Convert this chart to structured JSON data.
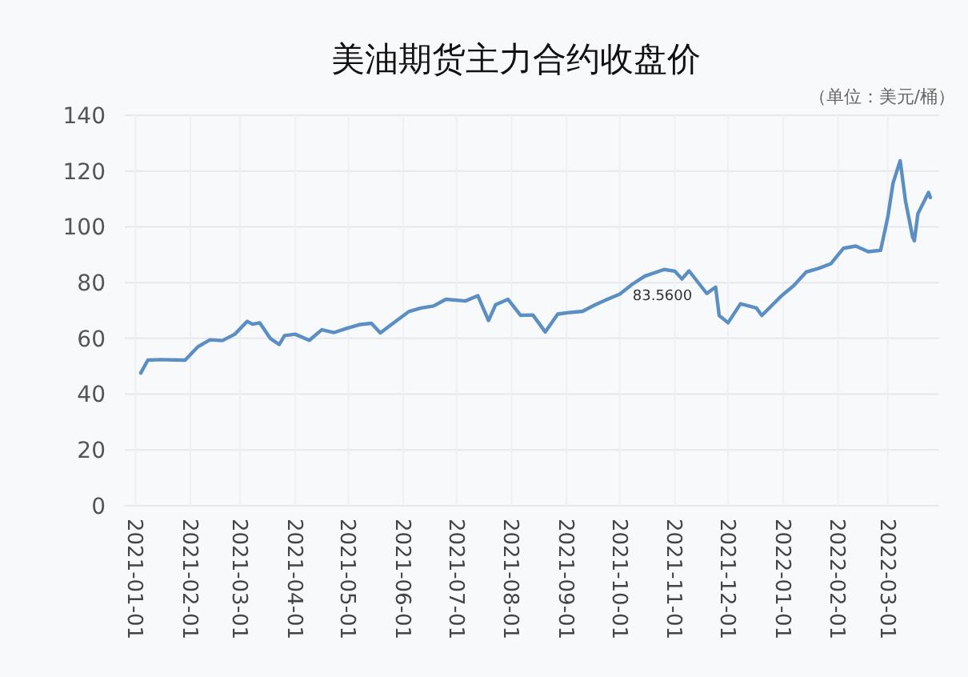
{
  "chart_data": {
    "type": "line",
    "title": "美油期货主力合约收盘价",
    "annotations": [
      "（单位：美元/桶）",
      {
        "text": "83.5600",
        "x": "2021-10-25",
        "y": 83.56
      }
    ],
    "x": [
      "2021-01-04",
      "2021-01-08",
      "2021-01-15",
      "2021-01-22",
      "2021-01-29",
      "2021-02-05",
      "2021-02-12",
      "2021-02-19",
      "2021-02-26",
      "2021-03-05",
      "2021-03-08",
      "2021-03-12",
      "2021-03-18",
      "2021-03-23",
      "2021-03-26",
      "2021-04-01",
      "2021-04-09",
      "2021-04-16",
      "2021-04-23",
      "2021-04-30",
      "2021-05-07",
      "2021-05-14",
      "2021-05-19",
      "2021-05-28",
      "2021-06-04",
      "2021-06-11",
      "2021-06-18",
      "2021-06-25",
      "2021-07-06",
      "2021-07-13",
      "2021-07-19",
      "2021-07-23",
      "2021-07-30",
      "2021-08-06",
      "2021-08-13",
      "2021-08-20",
      "2021-08-27",
      "2021-09-03",
      "2021-09-10",
      "2021-09-17",
      "2021-09-24",
      "2021-10-01",
      "2021-10-08",
      "2021-10-15",
      "2021-10-26",
      "2021-11-01",
      "2021-11-05",
      "2021-11-09",
      "2021-11-19",
      "2021-11-24",
      "2021-11-26",
      "2021-12-01",
      "2021-12-08",
      "2021-12-17",
      "2021-12-20",
      "2021-12-31",
      "2022-01-07",
      "2022-01-14",
      "2022-01-21",
      "2022-01-28",
      "2022-02-04",
      "2022-02-11",
      "2022-02-18",
      "2022-02-25",
      "2022-03-01",
      "2022-03-04",
      "2022-03-08",
      "2022-03-11",
      "2022-03-15",
      "2022-03-16",
      "2022-03-18",
      "2022-03-24",
      "2022-03-25"
    ],
    "series": [
      {
        "color": "#5b8fc4",
        "values": [
          47.6,
          52.2,
          52.4,
          52.3,
          52.2,
          56.9,
          59.5,
          59.2,
          61.5,
          66.1,
          65.1,
          65.6,
          60.0,
          57.8,
          61.0,
          61.5,
          59.3,
          63.1,
          62.1,
          63.6,
          64.9,
          65.4,
          62.0,
          66.3,
          69.6,
          70.9,
          71.6,
          74.0,
          73.4,
          75.3,
          66.4,
          72.1,
          74.0,
          68.3,
          68.4,
          62.3,
          68.7,
          69.3,
          69.7,
          72.0,
          74.0,
          75.9,
          79.4,
          82.3,
          84.7,
          84.1,
          81.3,
          84.2,
          76.1,
          78.4,
          68.2,
          65.6,
          72.4,
          70.9,
          68.2,
          75.2,
          78.9,
          83.8,
          85.1,
          86.8,
          92.3,
          93.1,
          91.1,
          91.6,
          103.4,
          115.7,
          123.7,
          109.3,
          96.4,
          95.0,
          104.7,
          112.3,
          110.5
        ]
      }
    ],
    "xlim": [
      "2020-12-26",
      "2022-03-30"
    ],
    "xticks": [
      "2021-01-01",
      "2021-02-01",
      "2021-03-01",
      "2021-04-01",
      "2021-05-01",
      "2021-06-01",
      "2021-07-01",
      "2021-08-01",
      "2021-09-01",
      "2021-10-01",
      "2021-11-01",
      "2021-12-01",
      "2022-01-01",
      "2022-02-01",
      "2022-03-01"
    ],
    "ylim": [
      0,
      140
    ],
    "yticks": [
      0,
      20,
      40,
      60,
      80,
      100,
      120,
      140
    ],
    "grid": true
  }
}
